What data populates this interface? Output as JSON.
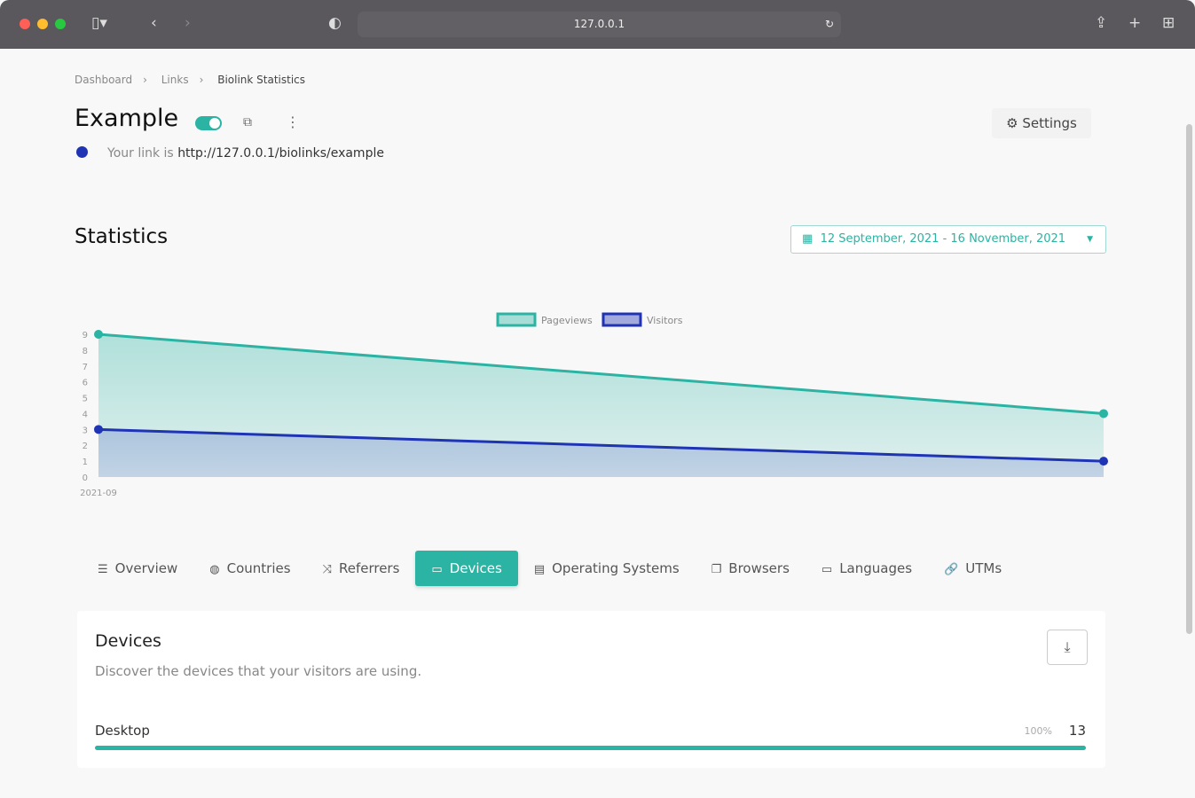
{
  "browser": {
    "url": "127.0.0.1"
  },
  "breadcrumb": [
    "Dashboard",
    "Links",
    "Biolink Statistics"
  ],
  "header": {
    "title": "Example",
    "link_prefix": "Your link is",
    "link_url": "http://127.0.0.1/biolinks/example",
    "settings_label": "Settings",
    "enabled": true
  },
  "statistics": {
    "title": "Statistics",
    "date_range": "12 September, 2021 - 16 November, 2021"
  },
  "chart_data": {
    "type": "area",
    "x": [
      "2021-09",
      "2021-11"
    ],
    "xtick_labels": [
      "2021-09"
    ],
    "ylim": [
      0,
      9
    ],
    "yticks": [
      0,
      1,
      2,
      3,
      4,
      5,
      6,
      7,
      8,
      9
    ],
    "legend_position": "top",
    "series": [
      {
        "name": "Pageviews",
        "values": [
          9,
          4
        ],
        "color": "#2bb3a3"
      },
      {
        "name": "Visitors",
        "values": [
          3,
          1
        ],
        "color": "#1f33b5"
      }
    ]
  },
  "tabs": [
    {
      "label": "Overview",
      "icon": "list-icon"
    },
    {
      "label": "Countries",
      "icon": "globe-icon"
    },
    {
      "label": "Referrers",
      "icon": "shuffle-icon"
    },
    {
      "label": "Devices",
      "icon": "laptop-icon",
      "active": true
    },
    {
      "label": "Operating Systems",
      "icon": "server-icon"
    },
    {
      "label": "Browsers",
      "icon": "window-icon"
    },
    {
      "label": "Languages",
      "icon": "language-icon"
    },
    {
      "label": "UTMs",
      "icon": "link-icon"
    }
  ],
  "devices": {
    "title": "Devices",
    "description": "Discover the devices that your visitors are using.",
    "rows": [
      {
        "label": "Desktop",
        "percent": "100%",
        "count": "13",
        "fraction": 1.0
      }
    ]
  }
}
